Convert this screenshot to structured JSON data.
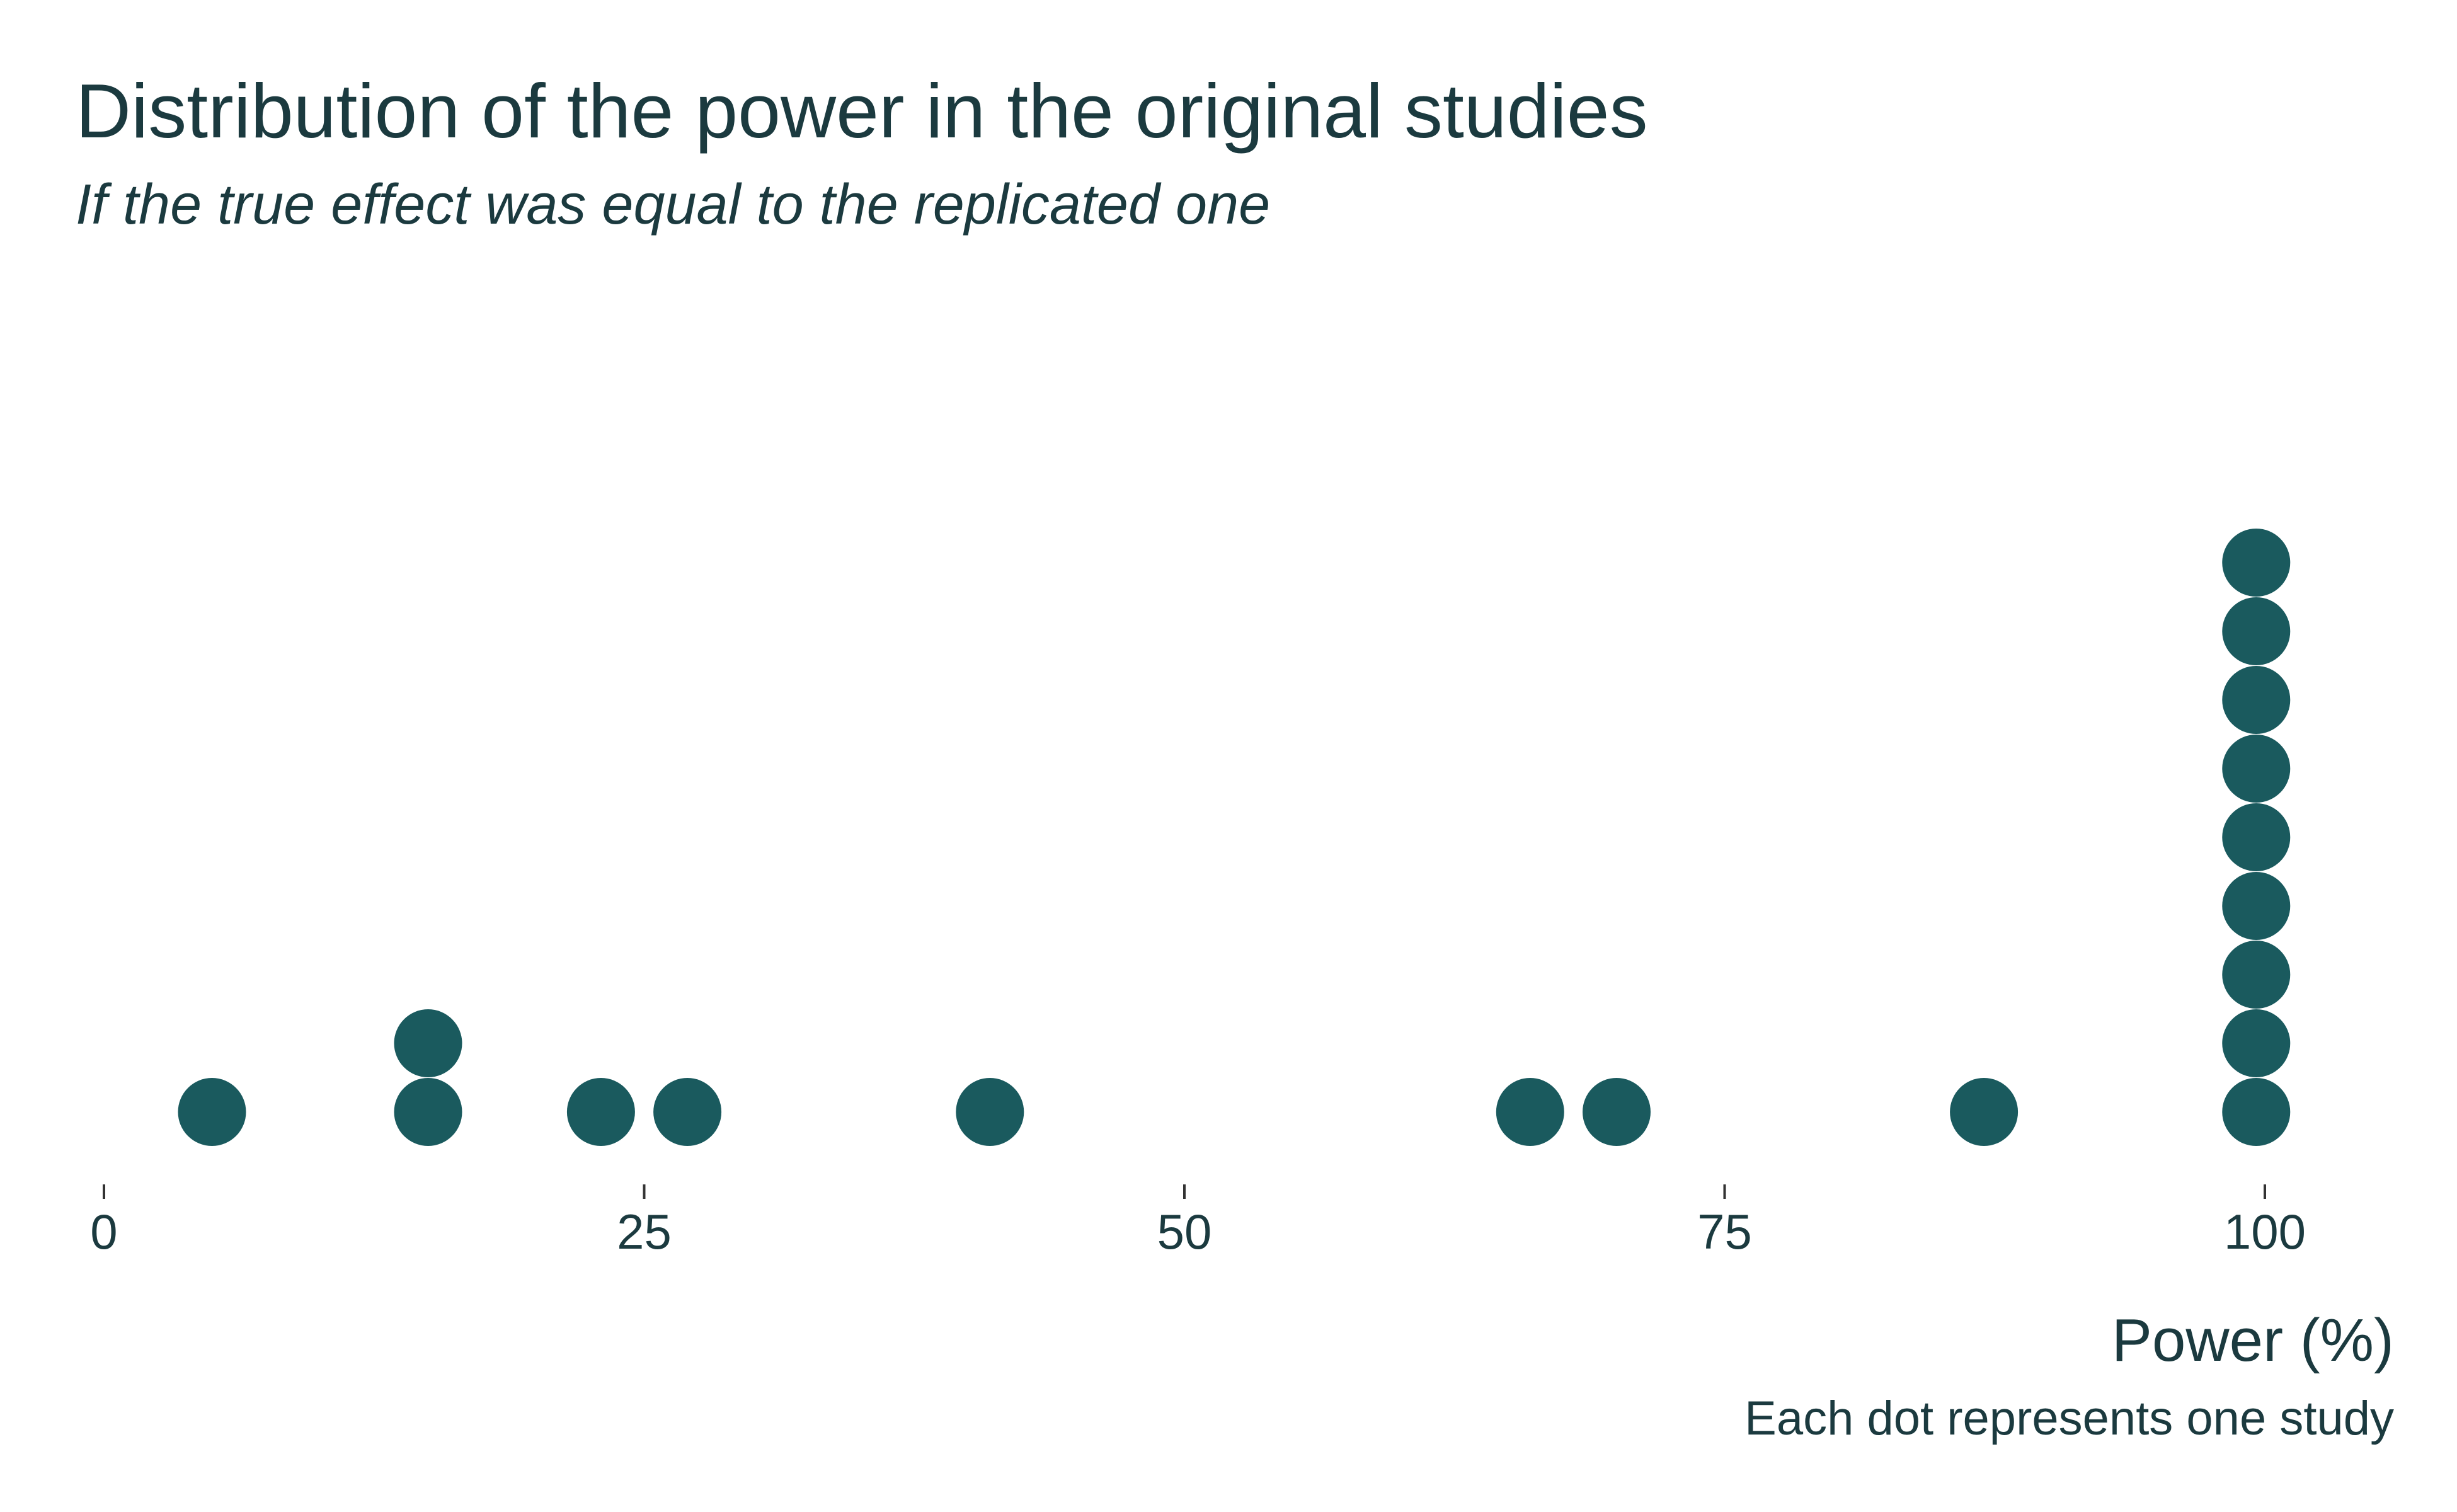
{
  "chart_data": {
    "type": "dot",
    "title": "Distribution of the power in the original studies",
    "subtitle": "If the true effect was equal to the replicated one",
    "xlabel": "Power (%)",
    "caption": "Each dot represents one study",
    "xlim": [
      0,
      100
    ],
    "x_ticks": [
      {
        "value": 0,
        "label": "0"
      },
      {
        "value": 25,
        "label": "25"
      },
      {
        "value": 50,
        "label": "50"
      },
      {
        "value": 75,
        "label": "75"
      },
      {
        "value": 100,
        "label": "100"
      }
    ],
    "grid": false,
    "dot_color": "#1a5a5e",
    "values": [
      5,
      15,
      15,
      23,
      27,
      41,
      66,
      70,
      87,
      99.6,
      99.6,
      99.6,
      99.6,
      99.6,
      99.6,
      99.6,
      99.6,
      99.6
    ]
  }
}
